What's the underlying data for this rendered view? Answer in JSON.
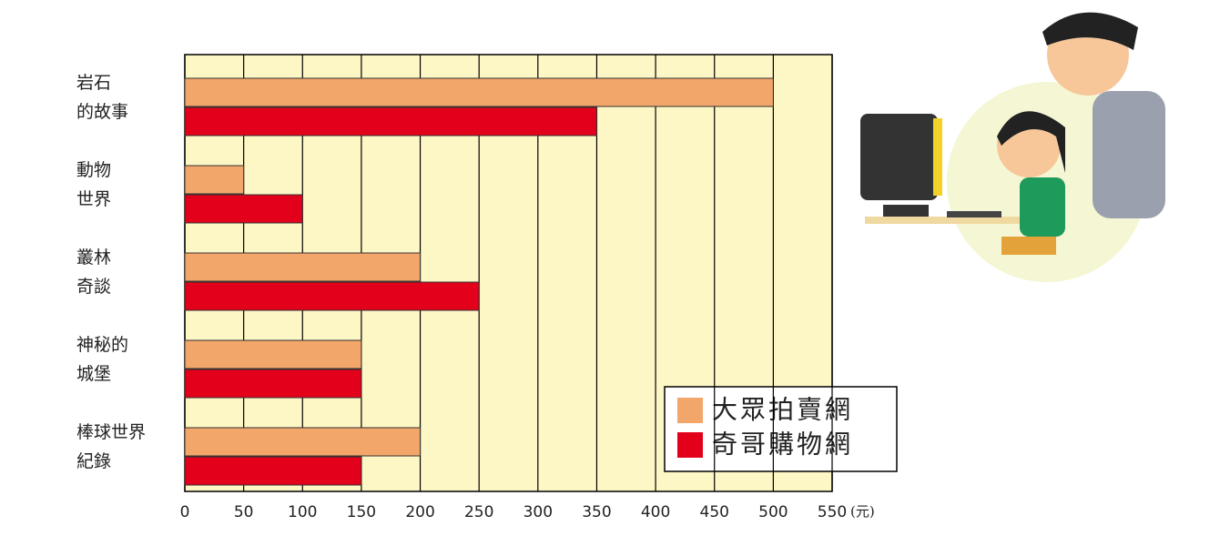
{
  "chart_data": {
    "type": "barh",
    "categories": [
      [
        "岩石",
        "的故事"
      ],
      [
        "動物",
        "世界"
      ],
      [
        "叢林",
        "奇談"
      ],
      [
        "神秘的",
        "城堡"
      ],
      [
        "棒球世界",
        "紀錄"
      ]
    ],
    "series": [
      {
        "name": "大眾拍賣網",
        "color": "#f2a66a",
        "values": [
          500,
          50,
          200,
          150,
          200
        ]
      },
      {
        "name": "奇哥購物網",
        "color": "#e3001b",
        "values": [
          350,
          100,
          250,
          150,
          150
        ]
      }
    ],
    "xlim": [
      0,
      550
    ],
    "xticks": [
      0,
      50,
      100,
      150,
      200,
      250,
      300,
      350,
      400,
      450,
      500,
      550
    ],
    "x_unit": "(元)",
    "grid": true,
    "legend": "lower right"
  }
}
